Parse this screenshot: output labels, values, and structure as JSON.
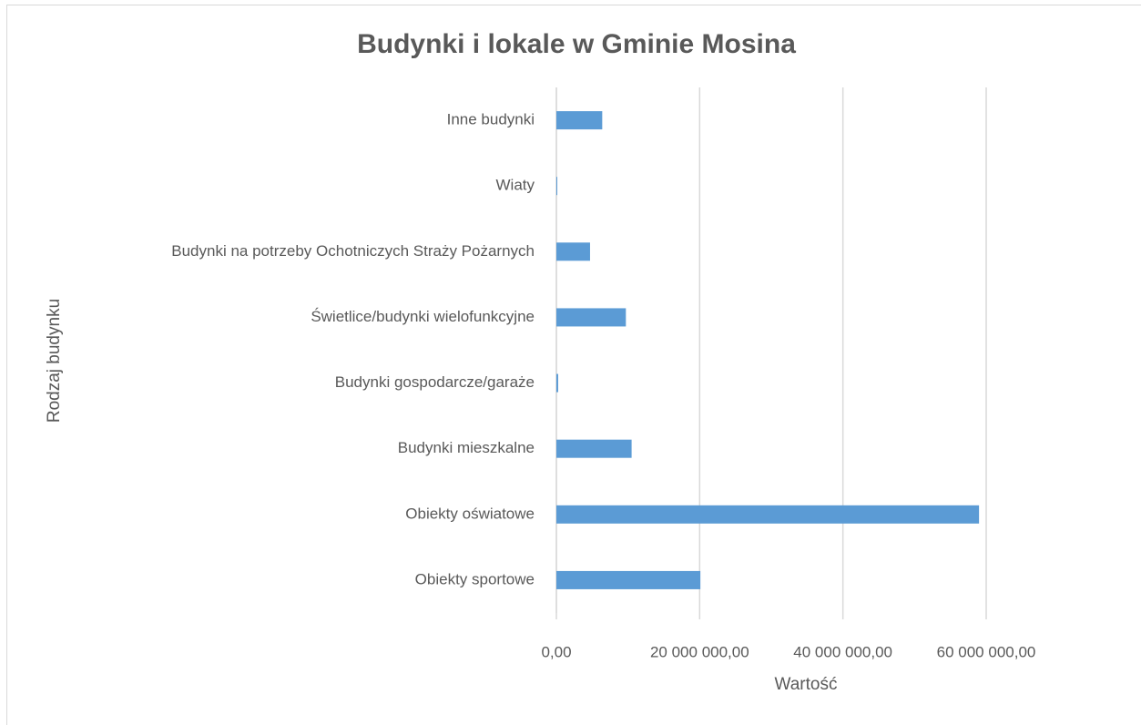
{
  "chart_data": {
    "type": "barh",
    "title": "Budynki i lokale w Gminie Mosina",
    "xlabel": "Wartość",
    "ylabel": "Rodzaj budynku",
    "categories": [
      "Obiekty sportowe",
      "Obiekty oświatowe",
      "Budynki mieszkalne",
      "Budynki gospodarcze/garaże",
      "Świetlice/budynki wielofunkcyjne",
      "Budynki na potrzeby Ochotniczych Straży Pożarnych",
      "Wiaty",
      "Inne budynki"
    ],
    "values": [
      20100000,
      59000000,
      10500000,
      250000,
      9700000,
      4700000,
      100000,
      6400000
    ],
    "color": "#5b9bd5",
    "xlim": [
      0,
      60000000
    ],
    "xticks": [
      {
        "value": 0,
        "label": "0,00"
      },
      {
        "value": 20000000,
        "label": "20 000 000,00"
      },
      {
        "value": 40000000,
        "label": "40 000 000,00"
      },
      {
        "value": 60000000,
        "label": "60 000 000,00"
      }
    ],
    "grid": true
  }
}
